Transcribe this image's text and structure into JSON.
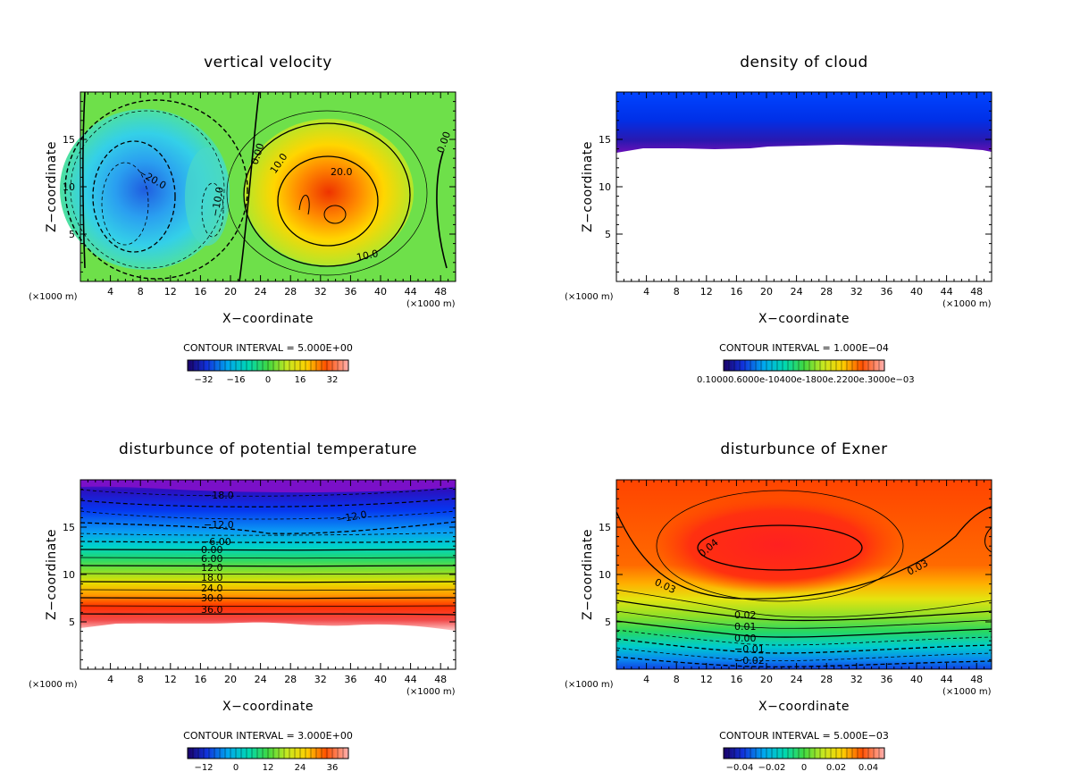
{
  "chart_data": [
    {
      "type": "contour",
      "title": "vertical velocity",
      "xlabel": "X−coordinate",
      "ylabel": "Z−coordinate",
      "x_unit": "(×1000 m)",
      "z_unit": "(×1000 m)",
      "xlim": [
        0,
        50
      ],
      "ylim": [
        0,
        20
      ],
      "xticks": [
        4,
        8,
        12,
        16,
        20,
        24,
        28,
        32,
        36,
        40,
        44,
        48
      ],
      "yticks": [
        5,
        10,
        15
      ],
      "contour_interval": "CONTOUR INTERVAL = 5.000E+00",
      "colorbar_ticks": [
        "−32",
        "−16",
        "0",
        "16",
        "32"
      ],
      "contour_labels": [
        "0.00",
        "10.0",
        "20.0",
        "−20.0",
        "−10.0",
        "10.0",
        "0.00"
      ]
    },
    {
      "type": "contour",
      "title": "density of cloud",
      "xlabel": "X−coordinate",
      "ylabel": "Z−coordinate",
      "x_unit": "(×1000 m)",
      "z_unit": "(×1000 m)",
      "xlim": [
        0,
        50
      ],
      "ylim": [
        0,
        20
      ],
      "xticks": [
        4,
        8,
        12,
        16,
        20,
        24,
        28,
        32,
        36,
        40,
        44,
        48
      ],
      "yticks": [
        5,
        10,
        15
      ],
      "contour_interval": "CONTOUR INTERVAL = 1.000E−04",
      "colorbar_ticks": [
        "0.10000.6000e-10400e-1800e.2200e.3000e−03"
      ],
      "contour_labels": []
    },
    {
      "type": "contour",
      "title": "disturbunce of potential temperature",
      "xlabel": "X−coordinate",
      "ylabel": "Z−coordinate",
      "x_unit": "(×1000 m)",
      "z_unit": "(×1000 m)",
      "xlim": [
        0,
        50
      ],
      "ylim": [
        0,
        20
      ],
      "xticks": [
        4,
        8,
        12,
        16,
        20,
        24,
        28,
        32,
        36,
        40,
        44,
        48
      ],
      "yticks": [
        5,
        10,
        15
      ],
      "contour_interval": "CONTOUR INTERVAL = 3.000E+00",
      "colorbar_ticks": [
        "−12",
        "0",
        "12",
        "24",
        "36"
      ],
      "contour_labels": [
        "−18.0",
        "−12.0",
        "−12.0",
        "−6.00",
        "0.00",
        "6.00",
        "12.0",
        "18.0",
        "24.0",
        "30.0",
        "36.0"
      ]
    },
    {
      "type": "contour",
      "title": "disturbunce of Exner",
      "xlabel": "X−coordinate",
      "ylabel": "Z−coordinate",
      "x_unit": "(×1000 m)",
      "z_unit": "(×1000 m)",
      "xlim": [
        0,
        50
      ],
      "ylim": [
        0,
        20
      ],
      "xticks": [
        4,
        8,
        12,
        16,
        20,
        24,
        28,
        32,
        36,
        40,
        44,
        48
      ],
      "yticks": [
        5,
        10,
        15
      ],
      "contour_interval": "CONTOUR INTERVAL = 5.000E−03",
      "colorbar_ticks": [
        "−0.04",
        "−0.02",
        "0",
        "0.02",
        "0.04"
      ],
      "contour_labels": [
        "0.04",
        "0.03",
        "0.03",
        "0.02",
        "0.01",
        "0.00",
        "−0.01",
        "−0.02"
      ]
    }
  ]
}
